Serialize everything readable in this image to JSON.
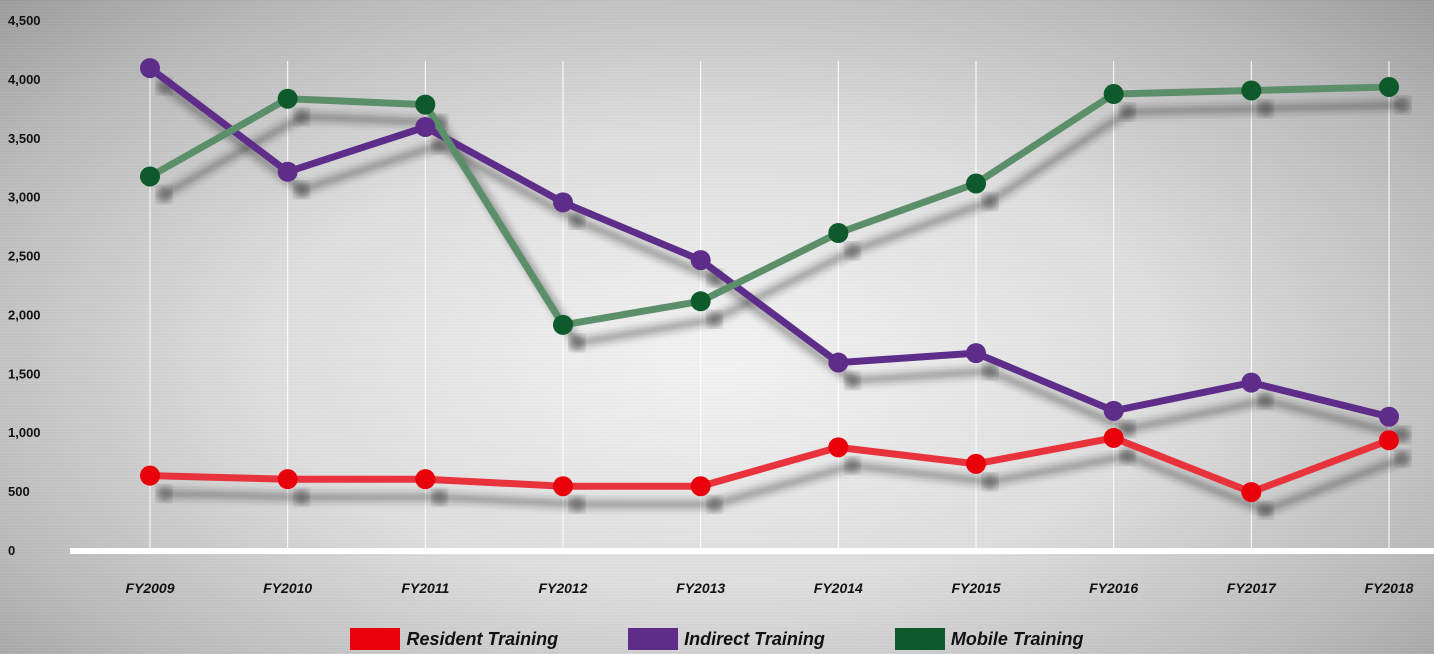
{
  "chart_data": {
    "type": "line",
    "categories": [
      "FY2009",
      "FY2010",
      "FY2011",
      "FY2012",
      "FY2013",
      "FY2014",
      "FY2015",
      "FY2016",
      "FY2017",
      "FY2018"
    ],
    "y_ticks": [
      "0",
      "500",
      "1,000",
      "1,500",
      "2,000",
      "2,500",
      "3,000",
      "3,500",
      "4,000",
      "4,500"
    ],
    "ylim": [
      0,
      4500
    ],
    "grid": "vertical",
    "legend_position": "bottom",
    "series": [
      {
        "name": "Resident Training",
        "color": "#e8333d",
        "marker_color": "#e8000b",
        "values": [
          640,
          610,
          610,
          550,
          550,
          880,
          740,
          960,
          500,
          940
        ]
      },
      {
        "name": "Indirect Training",
        "color": "#5e2d8a",
        "marker_color": "#5e2d8a",
        "values": [
          4100,
          3220,
          3600,
          2960,
          2470,
          1600,
          1680,
          1190,
          1430,
          1140
        ]
      },
      {
        "name": "Mobile Training",
        "color": "#5a8f6a",
        "marker_color": "#0f5a2a",
        "values": [
          3180,
          3840,
          3790,
          1920,
          2120,
          2700,
          3120,
          3880,
          3910,
          3940
        ]
      }
    ]
  },
  "legend": [
    {
      "label": "Resident Training",
      "color": "#e8000b"
    },
    {
      "label": "Indirect Training",
      "color": "#5e2d8a"
    },
    {
      "label": "Mobile Training",
      "color": "#0f5a2a"
    }
  ]
}
